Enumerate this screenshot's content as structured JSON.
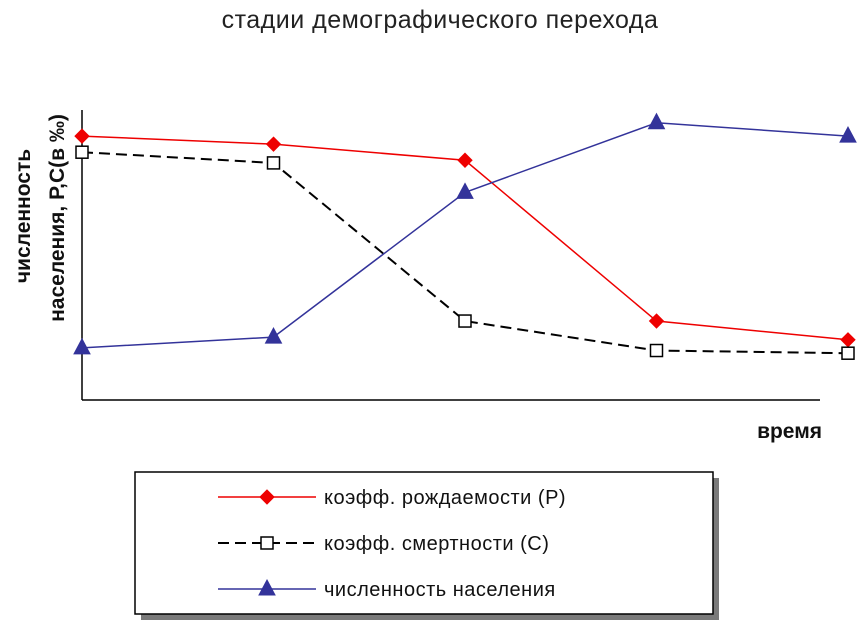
{
  "chart_data": {
    "type": "line",
    "title": "стадии демографического перехода",
    "xlabel": "время",
    "ylabel_line1": "численность",
    "ylabel_line2": "населения, Р,С(в ‰)",
    "x": [
      1,
      2,
      3,
      4,
      5
    ],
    "ylim": [
      0,
      100
    ],
    "grid": false,
    "legend_position": "bottom",
    "series": [
      {
        "name": "коэфф. рождаемости (Р)",
        "color": "#ee0000",
        "marker": "diamond-filled",
        "dash": "solid",
        "values": [
          91,
          88,
          82,
          22,
          15
        ]
      },
      {
        "name": "коэфф. смертности (С)",
        "color": "#000000",
        "marker": "square-open",
        "dash": "dashed",
        "values": [
          85,
          81,
          22,
          11,
          10
        ]
      },
      {
        "name": "численность населения",
        "color": "#33339a",
        "marker": "triangle-filled",
        "dash": "solid",
        "values": [
          12,
          16,
          70,
          96,
          91
        ]
      }
    ]
  }
}
